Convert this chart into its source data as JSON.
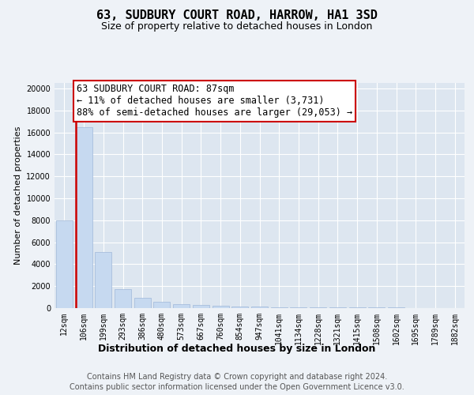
{
  "title": "63, SUDBURY COURT ROAD, HARROW, HA1 3SD",
  "subtitle": "Size of property relative to detached houses in London",
  "xlabel": "Distribution of detached houses by size in London",
  "ylabel": "Number of detached properties",
  "annotation_line1": "63 SUDBURY COURT ROAD: 87sqm",
  "annotation_line2": "← 11% of detached houses are smaller (3,731)",
  "annotation_line3": "88% of semi-detached houses are larger (29,053) →",
  "footer1": "Contains HM Land Registry data © Crown copyright and database right 2024.",
  "footer2": "Contains public sector information licensed under the Open Government Licence v3.0.",
  "categories": [
    "12sqm",
    "106sqm",
    "199sqm",
    "293sqm",
    "386sqm",
    "480sqm",
    "573sqm",
    "667sqm",
    "760sqm",
    "854sqm",
    "947sqm",
    "1041sqm",
    "1134sqm",
    "1228sqm",
    "1321sqm",
    "1415sqm",
    "1508sqm",
    "1602sqm",
    "1695sqm",
    "1789sqm",
    "1882sqm"
  ],
  "values": [
    7950,
    16500,
    5100,
    1750,
    950,
    580,
    380,
    260,
    190,
    145,
    115,
    95,
    80,
    68,
    58,
    50,
    44,
    38,
    34,
    30,
    27
  ],
  "bar_color": "#c6d9f0",
  "bar_edge_color": "#a0b8d8",
  "red_line_x": 1,
  "ylim": [
    0,
    20500
  ],
  "yticks": [
    0,
    2000,
    4000,
    6000,
    8000,
    10000,
    12000,
    14000,
    16000,
    18000,
    20000
  ],
  "background_color": "#eef2f7",
  "plot_bg_color": "#dde6f0",
  "grid_color": "#ffffff",
  "annotation_box_color": "#cc0000",
  "title_fontsize": 11,
  "subtitle_fontsize": 9,
  "xlabel_fontsize": 9,
  "ylabel_fontsize": 8,
  "tick_fontsize": 7,
  "annotation_fontsize": 8.5,
  "footer_fontsize": 7
}
